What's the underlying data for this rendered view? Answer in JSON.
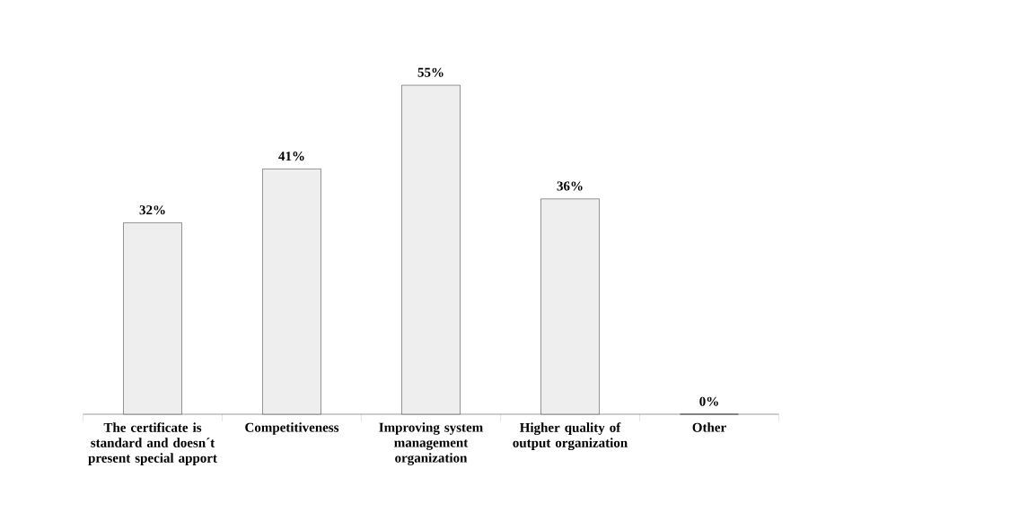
{
  "chart_data": {
    "type": "bar",
    "categories": [
      "The certificate is standard and doesn´t present special apport",
      "Competitiveness",
      "Improving system management organization",
      "Higher quality of output organization",
      "Other"
    ],
    "values": [
      32,
      41,
      55,
      36,
      0
    ],
    "value_labels": [
      "32%",
      "41%",
      "55%",
      "36%",
      "0%"
    ],
    "color": "#eeeeee"
  }
}
